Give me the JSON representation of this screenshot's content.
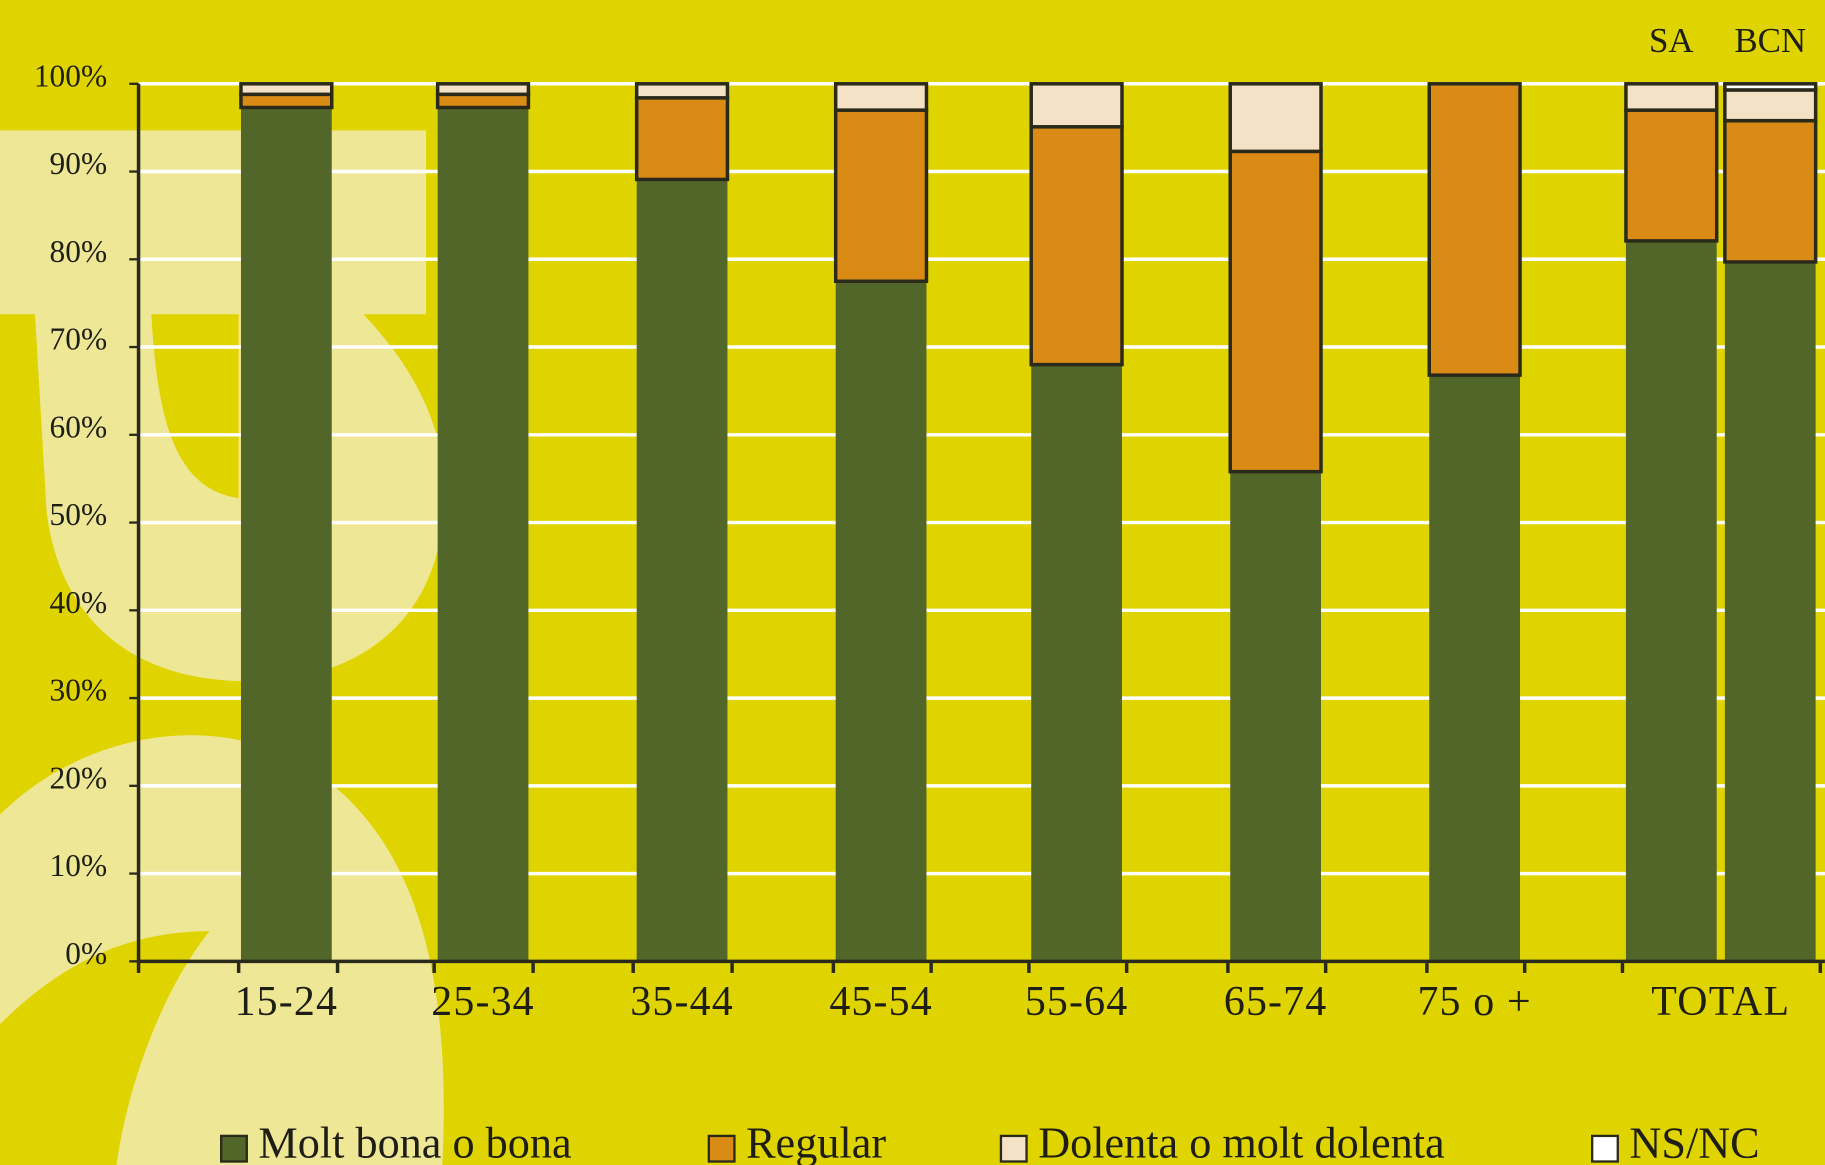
{
  "chart_data": {
    "type": "stacked-bar",
    "categories": [
      "15-24",
      "25-34",
      "35-44",
      "45-54",
      "55-64",
      "65-74",
      "75 o +",
      "TOTAL",
      null
    ],
    "bar_labels": [
      null,
      null,
      null,
      null,
      null,
      null,
      null,
      "SA",
      "BCN"
    ],
    "series": [
      {
        "name": "Molt bona o bona",
        "color": "#53662a",
        "values": [
          97.3,
          97.3,
          89.1,
          77.5,
          68.0,
          55.8,
          66.8,
          82.1,
          79.7
        ]
      },
      {
        "name": "Regular",
        "color": "#d98b16",
        "values": [
          1.5,
          1.5,
          9.3,
          19.5,
          27.1,
          36.5,
          33.2,
          14.9,
          16.1
        ]
      },
      {
        "name": "Dolenta o molt dolenta",
        "color": "#f5e2c6",
        "values": [
          1.2,
          1.2,
          1.6,
          3.0,
          4.9,
          7.7,
          0,
          3.0,
          3.5
        ]
      },
      {
        "name": "NS/NC",
        "color": "#ffffff",
        "values": [
          0,
          0,
          0,
          0,
          0,
          0,
          0,
          0,
          0.7
        ]
      }
    ],
    "ylim": [
      0,
      100
    ],
    "yticks": [
      {
        "value": 0,
        "label": "0%"
      },
      {
        "value": 10,
        "label": "10%"
      },
      {
        "value": 20,
        "label": "20%"
      },
      {
        "value": 30,
        "label": "30%"
      },
      {
        "value": 40,
        "label": "40%"
      },
      {
        "value": 50,
        "label": "50%"
      },
      {
        "value": 60,
        "label": "60%"
      },
      {
        "value": 70,
        "label": "70%"
      },
      {
        "value": 80,
        "label": "80%"
      },
      {
        "value": 90,
        "label": "90%"
      },
      {
        "value": 100,
        "label": "100%"
      }
    ],
    "grid": true,
    "legend": "bottom"
  }
}
